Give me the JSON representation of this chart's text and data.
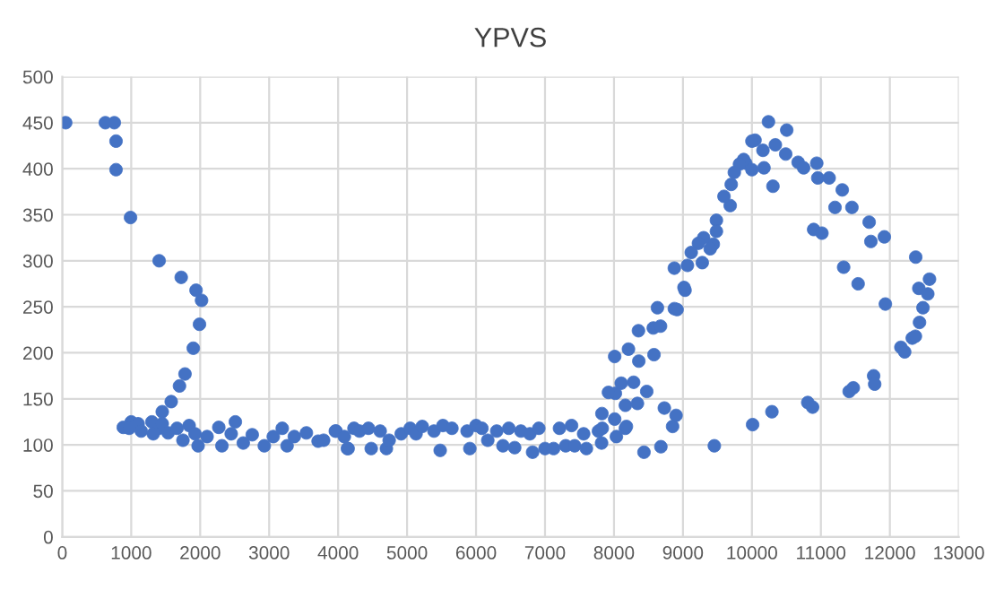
{
  "chart_data": {
    "type": "scatter",
    "title": "YPVS",
    "xlim": [
      0,
      13000
    ],
    "xticks": [
      0,
      1000,
      2000,
      3000,
      4000,
      5000,
      6000,
      7000,
      8000,
      9000,
      10000,
      11000,
      12000,
      13000
    ],
    "ylim": [
      0,
      500
    ],
    "yticks": [
      0,
      50,
      100,
      150,
      200,
      250,
      300,
      350,
      400,
      450,
      500
    ],
    "grid": true,
    "marker": "circle",
    "series": [
      {
        "color": "#4472c4",
        "x": [
          50,
          625,
          755,
          780,
          780,
          990,
          1405,
          1725,
          1940,
          2020,
          1990,
          1900,
          1780,
          1700,
          1580,
          1450,
          1000,
          1100,
          1300,
          1400,
          885,
          970,
          1145,
          1320,
          1450,
          1535,
          1665,
          1750,
          1840,
          1925,
          1970,
          2100,
          2270,
          2315,
          2450,
          2510,
          2625,
          2755,
          2930,
          3060,
          3190,
          3260,
          3365,
          3540,
          3710,
          3970,
          4145,
          4230,
          3790,
          3960,
          4090,
          4135,
          4310,
          4440,
          4480,
          4610,
          4700,
          4740,
          4915,
          5045,
          5130,
          5220,
          5390,
          5480,
          5520,
          5650,
          5870,
          5910,
          6000,
          6085,
          6170,
          6300,
          6390,
          6475,
          6560,
          6650,
          6780,
          6820,
          6910,
          7000,
          7125,
          7210,
          7300,
          7385,
          7430,
          7560,
          7600,
          7775,
          7820,
          8035,
          8165,
          8020,
          7920,
          8105,
          7825,
          8010,
          7830,
          8180,
          8165,
          8285,
          8340,
          8475,
          8435,
          8680,
          8730,
          8850,
          8900,
          9455,
          10010,
          10290,
          10810,
          10880,
          11410,
          11470,
          11765,
          11780,
          12160,
          12215,
          12325,
          12370,
          12430,
          12480,
          12420,
          12550,
          12575,
          12375,
          11935,
          11540,
          11330,
          10895,
          11015,
          11725,
          11920,
          11700,
          11205,
          11450,
          11310,
          10955,
          11120,
          10940,
          10670,
          10750,
          10490,
          10505,
          10340,
          10305,
          10240,
          10175,
          10160,
          10045,
          10000,
          10000,
          9910,
          9880,
          9820,
          9745,
          9700,
          9685,
          9595,
          9485,
          9485,
          9440,
          9395,
          9300,
          9225,
          9120,
          9280,
          9065,
          8875,
          9030,
          9015,
          8630,
          8875,
          8915,
          8355,
          8570,
          8675,
          8010,
          8210,
          8360,
          8580
        ],
        "values": [
          450,
          450,
          450,
          430,
          399,
          347,
          300,
          282,
          268,
          257,
          231,
          205,
          177,
          164,
          147,
          136,
          125,
          123,
          125,
          118,
          119,
          118,
          115,
          112,
          123,
          113,
          118,
          105,
          121,
          112,
          99,
          109,
          119,
          99,
          112,
          125,
          102,
          111,
          99,
          109,
          118,
          99,
          109,
          113,
          104,
          115,
          96,
          118,
          105,
          115,
          109,
          96,
          115,
          118,
          96,
          115,
          96,
          105,
          112,
          118,
          112,
          120,
          115,
          94,
          121,
          118,
          115,
          96,
          121,
          118,
          105,
          115,
          99,
          118,
          97,
          115,
          112,
          92,
          118,
          96,
          96,
          118,
          99,
          121,
          99,
          112,
          96,
          115,
          102,
          109,
          118,
          156,
          157,
          167,
          134,
          128,
          118,
          120,
          143,
          168,
          145,
          158,
          92,
          98,
          140,
          120,
          132,
          99,
          122,
          136,
          146,
          141,
          158,
          162,
          175,
          166,
          206,
          201,
          216,
          218,
          233,
          249,
          270,
          264,
          280,
          304,
          253,
          275,
          293,
          334,
          330,
          321,
          326,
          342,
          358,
          358,
          377,
          390,
          390,
          406,
          407,
          401,
          416,
          442,
          426,
          381,
          451,
          401,
          420,
          431,
          430,
          399,
          406,
          410,
          405,
          396,
          383,
          360,
          370,
          344,
          332,
          318,
          313,
          325,
          319,
          309,
          298,
          295,
          292,
          268,
          271,
          249,
          248,
          247,
          224,
          227,
          229,
          196,
          204,
          191,
          198
        ]
      }
    ]
  }
}
